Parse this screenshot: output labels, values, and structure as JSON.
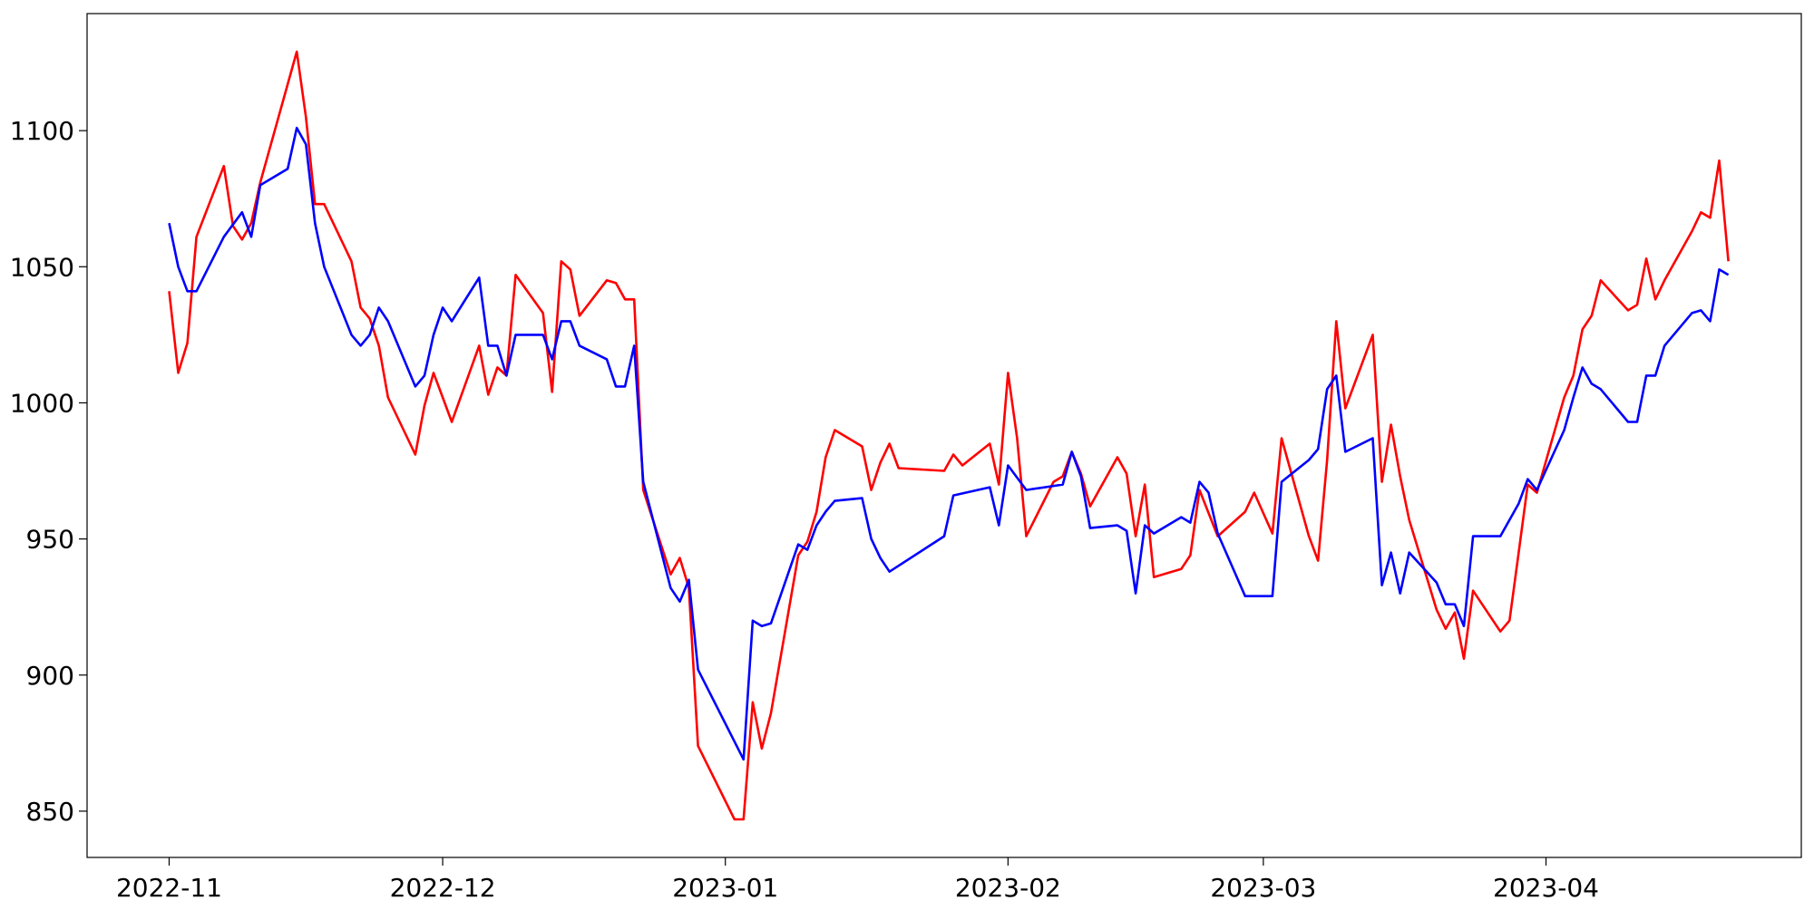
{
  "chart_data": {
    "type": "line",
    "xlim": [
      "2022-10-23",
      "2023-04-29"
    ],
    "xticks": [
      {
        "value": "2022-11-01",
        "label": "2022-11"
      },
      {
        "value": "2022-12-01",
        "label": "2022-12"
      },
      {
        "value": "2023-01-01",
        "label": "2023-01"
      },
      {
        "value": "2023-02-01",
        "label": "2023-02"
      },
      {
        "value": "2023-03-01",
        "label": "2023-03"
      },
      {
        "value": "2023-04-01",
        "label": "2023-04"
      }
    ],
    "ylim": [
      833,
      1143
    ],
    "yticks": [
      850,
      900,
      950,
      1000,
      1050,
      1100
    ],
    "grid": false,
    "series": [
      {
        "color": "#ff0000",
        "x": [
          "2022-11-01",
          "2022-11-02",
          "2022-11-03",
          "2022-11-04",
          "2022-11-07",
          "2022-11-08",
          "2022-11-09",
          "2022-11-10",
          "2022-11-11",
          "2022-11-15",
          "2022-11-16",
          "2022-11-17",
          "2022-11-18",
          "2022-11-21",
          "2022-11-22",
          "2022-11-23",
          "2022-11-24",
          "2022-11-25",
          "2022-11-28",
          "2022-11-29",
          "2022-11-30",
          "2022-12-01",
          "2022-12-02",
          "2022-12-05",
          "2022-12-06",
          "2022-12-07",
          "2022-12-08",
          "2022-12-09",
          "2022-12-12",
          "2022-12-13",
          "2022-12-14",
          "2022-12-15",
          "2022-12-16",
          "2022-12-19",
          "2022-12-20",
          "2022-12-21",
          "2022-12-22",
          "2022-12-23",
          "2022-12-26",
          "2022-12-27",
          "2022-12-28",
          "2022-12-29",
          "2023-01-02",
          "2023-01-03",
          "2023-01-04",
          "2023-01-05",
          "2023-01-06",
          "2023-01-09",
          "2023-01-10",
          "2023-01-11",
          "2023-01-12",
          "2023-01-13",
          "2023-01-16",
          "2023-01-17",
          "2023-01-18",
          "2023-01-19",
          "2023-01-20",
          "2023-01-25",
          "2023-01-26",
          "2023-01-27",
          "2023-01-30",
          "2023-01-31",
          "2023-02-01",
          "2023-02-02",
          "2023-02-03",
          "2023-02-06",
          "2023-02-07",
          "2023-02-08",
          "2023-02-09",
          "2023-02-10",
          "2023-02-13",
          "2023-02-14",
          "2023-02-15",
          "2023-02-16",
          "2023-02-17",
          "2023-02-20",
          "2023-02-21",
          "2023-02-22",
          "2023-02-24",
          "2023-02-27",
          "2023-02-28",
          "2023-03-02",
          "2023-03-03",
          "2023-03-06",
          "2023-03-07",
          "2023-03-08",
          "2023-03-09",
          "2023-03-10",
          "2023-03-13",
          "2023-03-14",
          "2023-03-15",
          "2023-03-16",
          "2023-03-17",
          "2023-03-20",
          "2023-03-21",
          "2023-03-22",
          "2023-03-23",
          "2023-03-24",
          "2023-03-27",
          "2023-03-28",
          "2023-03-29",
          "2023-03-30",
          "2023-03-31",
          "2023-04-03",
          "2023-04-04",
          "2023-04-05",
          "2023-04-06",
          "2023-04-07",
          "2023-04-10",
          "2023-04-11",
          "2023-04-12",
          "2023-04-13",
          "2023-04-14",
          "2023-04-17",
          "2023-04-18",
          "2023-04-19",
          "2023-04-20",
          "2023-04-21"
        ],
        "values": [
          1041,
          1011,
          1022,
          1061,
          1087,
          1065,
          1060,
          1066,
          1081,
          1129,
          1105,
          1073,
          1073,
          1052,
          1035,
          1031,
          1021,
          1002,
          981,
          999,
          1011,
          1002,
          993,
          1021,
          1003,
          1013,
          1010,
          1047,
          1033,
          1004,
          1052,
          1049,
          1032,
          1045,
          1044,
          1038,
          1038,
          968,
          937,
          943,
          932,
          874,
          847,
          847,
          890,
          873,
          886,
          944,
          949,
          960,
          980,
          990,
          984,
          968,
          978,
          985,
          976,
          975,
          981,
          977,
          985,
          970,
          1011,
          987,
          951,
          971,
          973,
          982,
          974,
          962,
          980,
          974,
          951,
          970,
          936,
          939,
          944,
          968,
          951,
          960,
          967,
          952,
          987,
          951,
          942,
          979,
          1030,
          998,
          1025,
          971,
          992,
          973,
          957,
          924,
          917,
          923,
          906,
          931,
          916,
          920,
          945,
          970,
          967,
          1002,
          1010,
          1027,
          1032,
          1045,
          1034,
          1036,
          1053,
          1038,
          1045,
          1063,
          1070,
          1068,
          1089,
          1052
        ]
      },
      {
        "color": "#0000ff",
        "x": [
          "2022-11-01",
          "2022-11-02",
          "2022-11-03",
          "2022-11-04",
          "2022-11-07",
          "2022-11-09",
          "2022-11-10",
          "2022-11-11",
          "2022-11-14",
          "2022-11-15",
          "2022-11-16",
          "2022-11-17",
          "2022-11-18",
          "2022-11-21",
          "2022-11-22",
          "2022-11-23",
          "2022-11-24",
          "2022-11-25",
          "2022-11-28",
          "2022-11-29",
          "2022-11-30",
          "2022-12-01",
          "2022-12-02",
          "2022-12-05",
          "2022-12-06",
          "2022-12-07",
          "2022-12-08",
          "2022-12-09",
          "2022-12-12",
          "2022-12-13",
          "2022-12-14",
          "2022-12-15",
          "2022-12-16",
          "2022-12-19",
          "2022-12-20",
          "2022-12-21",
          "2022-12-22",
          "2022-12-23",
          "2022-12-26",
          "2022-12-27",
          "2022-12-28",
          "2022-12-29",
          "2023-01-03",
          "2023-01-04",
          "2023-01-05",
          "2023-01-06",
          "2023-01-09",
          "2023-01-10",
          "2023-01-11",
          "2023-01-12",
          "2023-01-13",
          "2023-01-16",
          "2023-01-17",
          "2023-01-18",
          "2023-01-19",
          "2023-01-25",
          "2023-01-26",
          "2023-01-30",
          "2023-01-31",
          "2023-02-01",
          "2023-02-03",
          "2023-02-07",
          "2023-02-08",
          "2023-02-09",
          "2023-02-10",
          "2023-02-13",
          "2023-02-14",
          "2023-02-15",
          "2023-02-16",
          "2023-02-17",
          "2023-02-20",
          "2023-02-21",
          "2023-02-22",
          "2023-02-23",
          "2023-02-24",
          "2023-02-27",
          "2023-02-28",
          "2023-03-02",
          "2023-03-03",
          "2023-03-06",
          "2023-03-07",
          "2023-03-08",
          "2023-03-09",
          "2023-03-10",
          "2023-03-13",
          "2023-03-14",
          "2023-03-15",
          "2023-03-16",
          "2023-03-17",
          "2023-03-20",
          "2023-03-21",
          "2023-03-22",
          "2023-03-23",
          "2023-03-24",
          "2023-03-27",
          "2023-03-29",
          "2023-03-30",
          "2023-03-31",
          "2023-04-03",
          "2023-04-04",
          "2023-04-05",
          "2023-04-06",
          "2023-04-07",
          "2023-04-10",
          "2023-04-11",
          "2023-04-12",
          "2023-04-13",
          "2023-04-14",
          "2023-04-17",
          "2023-04-18",
          "2023-04-19",
          "2023-04-20",
          "2023-04-21"
        ],
        "values": [
          1066,
          1050,
          1041,
          1041,
          1061,
          1070,
          1061,
          1080,
          1086,
          1101,
          1095,
          1066,
          1050,
          1025,
          1021,
          1025,
          1035,
          1030,
          1006,
          1010,
          1025,
          1035,
          1030,
          1046,
          1021,
          1021,
          1010,
          1025,
          1025,
          1016,
          1030,
          1030,
          1021,
          1016,
          1006,
          1006,
          1021,
          971,
          932,
          927,
          935,
          902,
          869,
          920,
          918,
          919,
          948,
          946,
          955,
          960,
          964,
          965,
          950,
          943,
          938,
          951,
          966,
          969,
          955,
          977,
          968,
          970,
          982,
          973,
          954,
          955,
          953,
          930,
          955,
          952,
          958,
          956,
          971,
          967,
          952,
          929,
          929,
          929,
          971,
          979,
          983,
          1005,
          1010,
          982,
          987,
          933,
          945,
          930,
          945,
          934,
          926,
          926,
          918,
          951,
          951,
          963,
          972,
          968,
          990,
          1002,
          1013,
          1007,
          1005,
          993,
          993,
          1010,
          1010,
          1021,
          1033,
          1034,
          1030,
          1049,
          1047
        ]
      }
    ]
  }
}
